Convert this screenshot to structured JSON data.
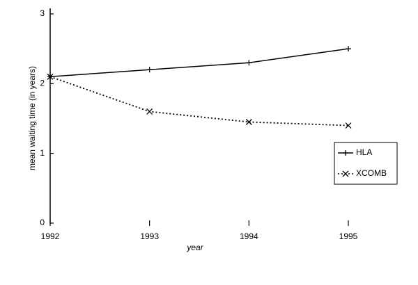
{
  "chart_data": {
    "type": "line",
    "x_label": "year",
    "y_label": "mean waiting time (in years)",
    "x": [
      1992,
      1993,
      1994,
      1995
    ],
    "xlim": [
      1992,
      1995
    ],
    "xticks": [
      1992,
      1993,
      1994,
      1995
    ],
    "ylim": [
      0,
      3
    ],
    "yticks": [
      0,
      1,
      2,
      3
    ],
    "legend": "right",
    "series": [
      {
        "name": "HLA",
        "color": "#000000",
        "line_style": "solid",
        "marker": "plus",
        "values": [
          2.1,
          2.2,
          2.3,
          2.5
        ]
      },
      {
        "name": "XCOMB",
        "color": "#000000",
        "line_style": "dotted",
        "marker": "cross",
        "values": [
          2.1,
          1.6,
          1.45,
          1.4
        ]
      }
    ]
  }
}
